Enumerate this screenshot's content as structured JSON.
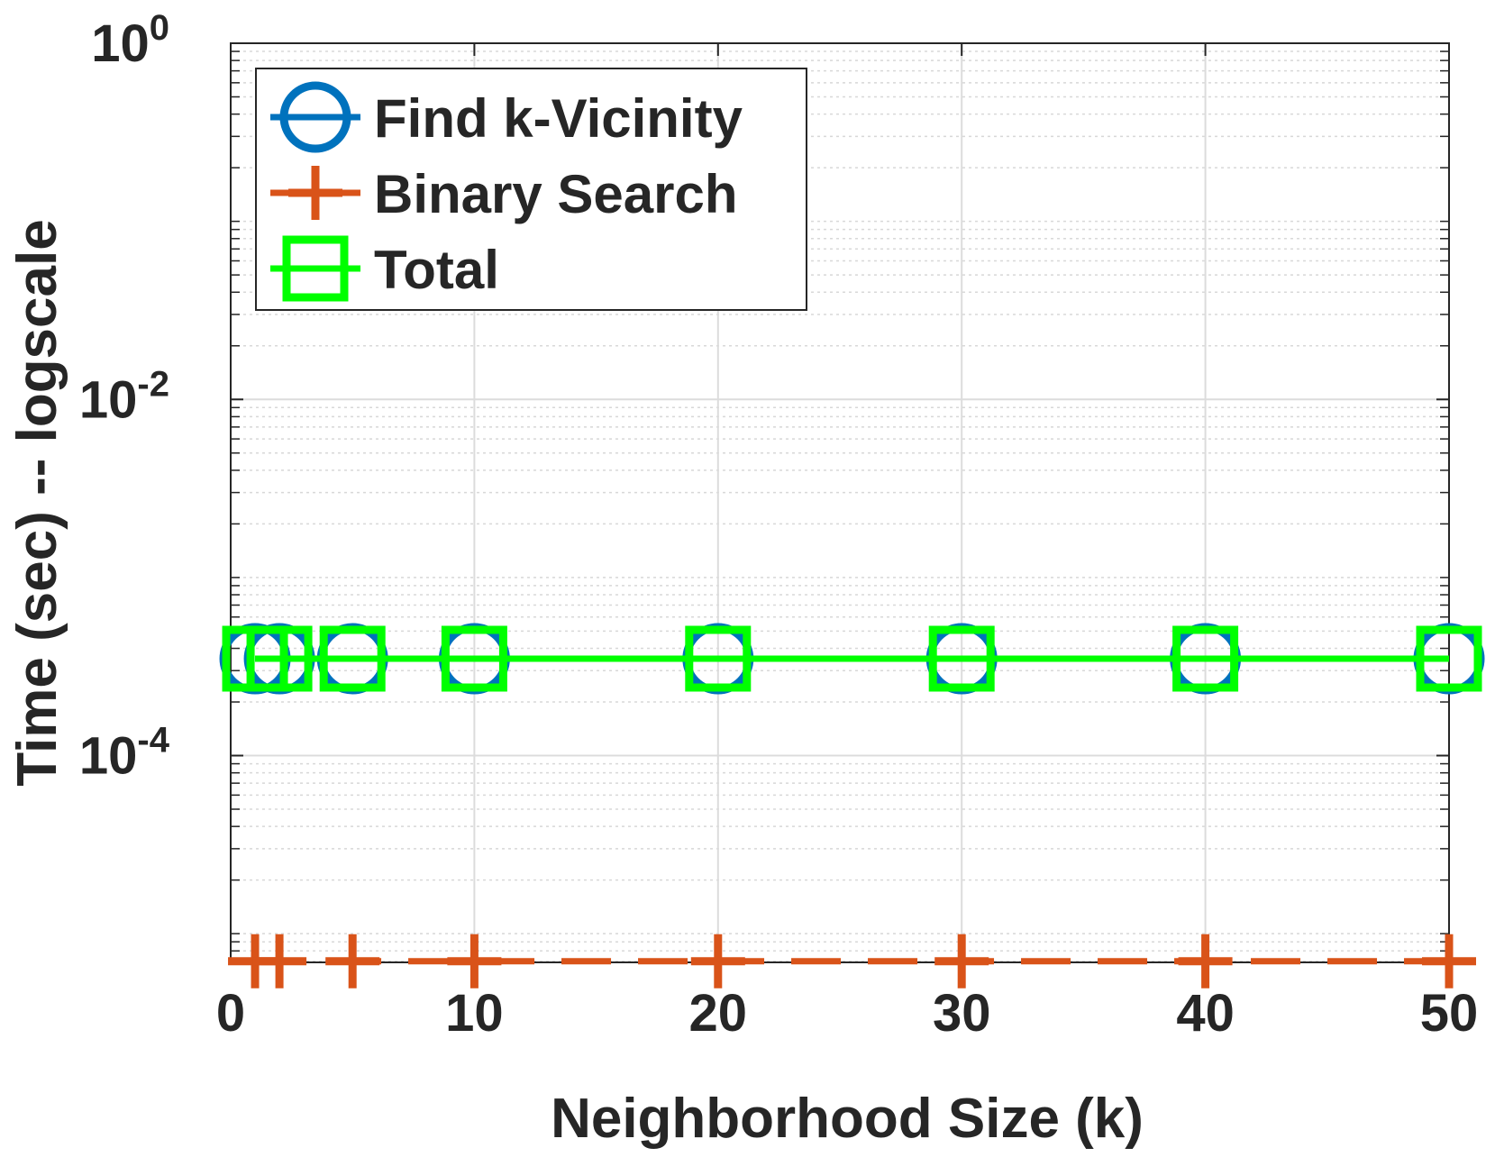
{
  "chart_data": {
    "type": "line",
    "xlabel": "Neighborhood Size (k)",
    "ylabel": "Time (sec) -- logscale",
    "x": [
      1,
      2,
      5,
      10,
      20,
      30,
      40,
      50
    ],
    "series": [
      {
        "name": "Find k-Vicinity",
        "color": "#0072bd",
        "marker": "circle",
        "linestyle": "solid",
        "values": [
          0.00035,
          0.00035,
          0.00035,
          0.00035,
          0.00035,
          0.00035,
          0.00035,
          0.00035
        ]
      },
      {
        "name": "Binary Search",
        "color": "#d95319",
        "marker": "plus",
        "linestyle": "dashed",
        "values": [
          7e-06,
          7e-06,
          7e-06,
          7e-06,
          7e-06,
          7e-06,
          7e-06,
          7e-06
        ]
      },
      {
        "name": "Total",
        "color": "#00ff00",
        "marker": "square",
        "linestyle": "solid",
        "values": [
          0.00035,
          0.00035,
          0.00035,
          0.00035,
          0.00035,
          0.00035,
          0.00035,
          0.00035
        ]
      }
    ],
    "xlim": [
      0,
      50
    ],
    "xticks": [
      0,
      10,
      20,
      30,
      40,
      50
    ],
    "ylim": [
      6.9e-06,
      1
    ],
    "log_y": true,
    "yticks": [
      {
        "value": 0.0001,
        "label": "10",
        "exponent": "-4"
      },
      {
        "value": 0.01,
        "label": "10",
        "exponent": "-2"
      },
      {
        "value": 1,
        "label": "10",
        "exponent": "0"
      }
    ],
    "grid": true,
    "legend": "upper left"
  }
}
